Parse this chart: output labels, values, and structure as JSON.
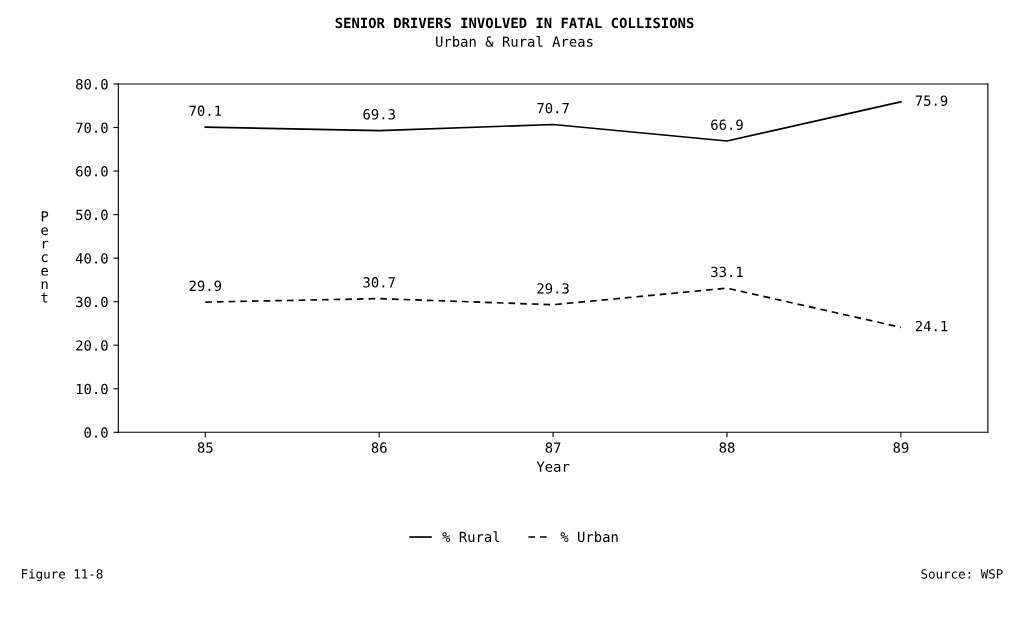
{
  "chart_data": {
    "type": "line",
    "title": "SENIOR DRIVERS INVOLVED IN FATAL COLLISIONS",
    "subtitle": "Urban & Rural Areas",
    "xlabel": "Year",
    "ylabel": "Percent",
    "categories": [
      "85",
      "86",
      "87",
      "88",
      "89"
    ],
    "series": [
      {
        "name": "% Rural",
        "color": "#000000",
        "line_style": "solid",
        "values": [
          70.1,
          69.3,
          70.7,
          66.9,
          75.9
        ]
      },
      {
        "name": "% Urban",
        "color": "#000000",
        "line_style": "dashed",
        "values": [
          29.9,
          30.7,
          29.3,
          33.1,
          24.1
        ]
      }
    ],
    "ylim": [
      0,
      80
    ],
    "yticks": [
      {
        "value": 0,
        "label": "0.0"
      },
      {
        "value": 10,
        "label": "10.0"
      },
      {
        "value": 20,
        "label": "20.0"
      },
      {
        "value": 30,
        "label": "30.0"
      },
      {
        "value": 40,
        "label": "40.0"
      },
      {
        "value": 50,
        "label": "50.0"
      },
      {
        "value": 60,
        "label": "60.0"
      },
      {
        "value": 70,
        "label": "70.0"
      },
      {
        "value": 80,
        "label": "80.0"
      }
    ],
    "data_labels": true,
    "grid": false,
    "legend": "bottom",
    "marker": "none",
    "annotations": [
      "Figure 11-8",
      "Source: WSP"
    ]
  }
}
